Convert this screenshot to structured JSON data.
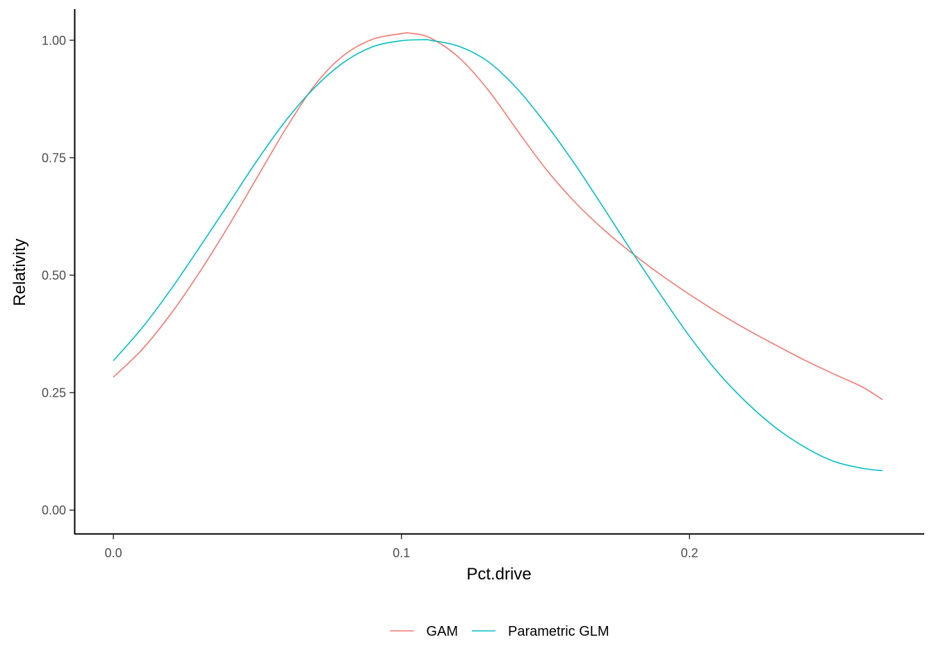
{
  "chart_data": {
    "type": "line",
    "title": "",
    "xlabel": "Pct.drive",
    "ylabel": "Relativity",
    "xlim": [
      -0.0133,
      0.2815
    ],
    "ylim": [
      -0.05,
      1.0664
    ],
    "x_ticks": [
      {
        "value": 0.0,
        "label": "0.0"
      },
      {
        "value": 0.1,
        "label": "0.1"
      },
      {
        "value": 0.2,
        "label": "0.2"
      }
    ],
    "y_ticks": [
      {
        "value": 0.0,
        "label": "0.00"
      },
      {
        "value": 0.25,
        "label": "0.25"
      },
      {
        "value": 0.5,
        "label": "0.50"
      },
      {
        "value": 0.75,
        "label": "0.75"
      },
      {
        "value": 1.0,
        "label": "1.00"
      }
    ],
    "grid": false,
    "legend_position": "bottom",
    "series": [
      {
        "name": "GAM",
        "color": "#F8766D",
        "x": [
          0.0,
          0.01,
          0.02,
          0.03,
          0.04,
          0.05,
          0.06,
          0.07,
          0.08,
          0.09,
          0.1,
          0.103,
          0.11,
          0.12,
          0.13,
          0.14,
          0.15,
          0.16,
          0.17,
          0.18,
          0.19,
          0.2,
          0.21,
          0.22,
          0.23,
          0.24,
          0.25,
          0.26,
          0.267
        ],
        "y": [
          0.283,
          0.342,
          0.418,
          0.507,
          0.605,
          0.709,
          0.813,
          0.905,
          0.968,
          1.002,
          1.014,
          1.015,
          1.005,
          0.963,
          0.895,
          0.81,
          0.727,
          0.657,
          0.598,
          0.547,
          0.501,
          0.459,
          0.42,
          0.384,
          0.351,
          0.319,
          0.29,
          0.262,
          0.235
        ]
      },
      {
        "name": "Parametric GLM",
        "color": "#00BFC4",
        "x": [
          0.0,
          0.01,
          0.02,
          0.03,
          0.04,
          0.05,
          0.06,
          0.07,
          0.08,
          0.09,
          0.1,
          0.108,
          0.11,
          0.12,
          0.13,
          0.14,
          0.15,
          0.16,
          0.17,
          0.18,
          0.19,
          0.2,
          0.21,
          0.22,
          0.23,
          0.24,
          0.25,
          0.26,
          0.267
        ],
        "y": [
          0.318,
          0.388,
          0.47,
          0.56,
          0.652,
          0.745,
          0.83,
          0.9,
          0.953,
          0.986,
          0.999,
          1.001,
          1.0,
          0.987,
          0.955,
          0.898,
          0.823,
          0.738,
          0.645,
          0.55,
          0.458,
          0.37,
          0.292,
          0.228,
          0.175,
          0.134,
          0.104,
          0.089,
          0.084
        ]
      }
    ]
  }
}
